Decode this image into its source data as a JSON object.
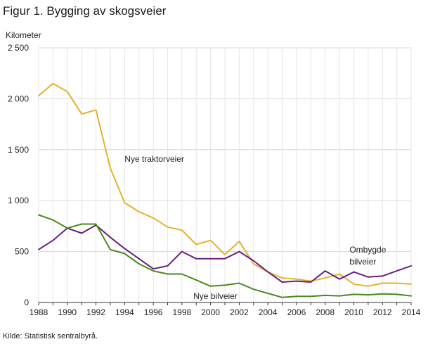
{
  "title": "Figur 1. Bygging av skogsveier",
  "source": "Kilde: Statistisk sentralbyrå.",
  "chart_data": {
    "type": "line",
    "ylabel": "Kilometer",
    "xlabel": "",
    "xlim": [
      1988,
      2014
    ],
    "ylim": [
      0,
      2500
    ],
    "grid": true,
    "x": [
      1988,
      1989,
      1990,
      1991,
      1992,
      1993,
      1994,
      1995,
      1996,
      1997,
      1998,
      1999,
      2000,
      2001,
      2002,
      2003,
      2004,
      2005,
      2006,
      2007,
      2008,
      2009,
      2010,
      2011,
      2012,
      2013,
      2014
    ],
    "x_ticks": [
      1988,
      1990,
      1992,
      1994,
      1996,
      1998,
      2000,
      2002,
      2004,
      2006,
      2008,
      2010,
      2012,
      2014
    ],
    "x_tick_labels": [
      "1988",
      "1990",
      "1992",
      "1994",
      "1996",
      "1998",
      "2000",
      "2002",
      "2004",
      "2006",
      "2008",
      "2010",
      "2012",
      "2014"
    ],
    "y_ticks": [
      0,
      500,
      1000,
      1500,
      2000,
      2500
    ],
    "y_tick_labels": [
      "0",
      "500",
      "1 000",
      "1 500",
      "2 000",
      "2 500"
    ],
    "series": [
      {
        "name": "Nye traktorveier",
        "color": "#e3b22b",
        "label_lines": [
          "Nye traktorveier"
        ],
        "label_at": [
          1994,
          1380
        ],
        "values": [
          2030,
          2150,
          2070,
          1850,
          1890,
          1320,
          980,
          890,
          830,
          740,
          710,
          570,
          610,
          470,
          600,
          380,
          300,
          240,
          230,
          210,
          240,
          280,
          180,
          160,
          190,
          190,
          180
        ]
      },
      {
        "name": "Ombygde bilveier",
        "color": "#6a1f7f",
        "label_lines": [
          "Ombygde",
          "bilveier"
        ],
        "label_at": [
          2009.7,
          490
        ],
        "values": [
          520,
          610,
          730,
          680,
          760,
          640,
          530,
          430,
          330,
          360,
          500,
          430,
          430,
          430,
          500,
          410,
          300,
          200,
          210,
          200,
          310,
          230,
          300,
          250,
          260,
          310,
          360
        ]
      },
      {
        "name": "Nye bilveier",
        "color": "#4a8a1c",
        "label_lines": [
          "Nye bilveier"
        ],
        "label_at": [
          1998.8,
          35
        ],
        "values": [
          860,
          810,
          730,
          770,
          770,
          520,
          480,
          380,
          310,
          280,
          280,
          220,
          160,
          170,
          190,
          130,
          90,
          50,
          60,
          60,
          70,
          65,
          80,
          75,
          85,
          80,
          65
        ]
      }
    ]
  }
}
